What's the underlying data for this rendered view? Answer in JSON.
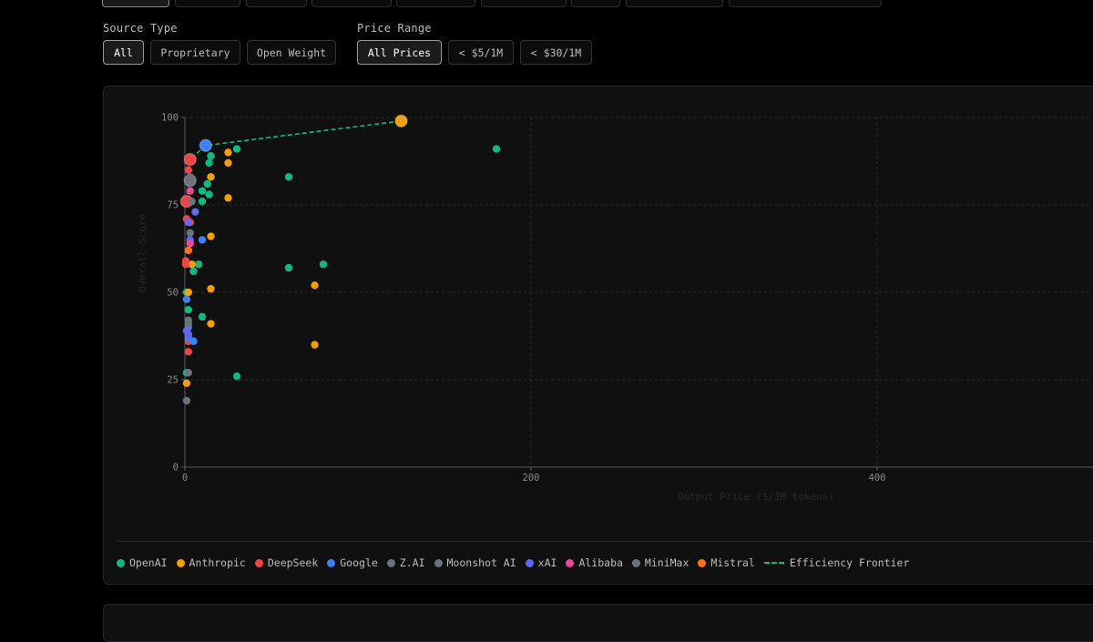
{
  "filters": {
    "source_type": {
      "label": "Source Type",
      "options": [
        "All",
        "Proprietary",
        "Open Weight"
      ],
      "selected": "All"
    },
    "price_range": {
      "label": "Price Range",
      "options": [
        "All Prices",
        "< $5/1M",
        "< $30/1M"
      ],
      "selected": "All Prices"
    }
  },
  "colors": {
    "OpenAI": "#10b981",
    "Anthropic": "#f59e0b",
    "DeepSeek": "#ef4444",
    "Google": "#3b82f6",
    "Z.AI": "#6b7280",
    "Moonshot AI": "#6b7280",
    "xAI": "#6366f1",
    "Alibaba": "#ec4899",
    "MiniMax": "#6b7280",
    "Mistral": "#f97316",
    "frontier": "#10b981"
  },
  "chart_data": {
    "type": "scatter",
    "xlabel": "Output Price ($/1M tokens)",
    "ylabel": "Overall Score",
    "xlim": [
      0,
      500
    ],
    "ylim": [
      0,
      100
    ],
    "x_ticks": [
      0,
      200,
      400
    ],
    "y_ticks": [
      0,
      25,
      50,
      75,
      100
    ],
    "grid": true,
    "legend_position": "bottom",
    "series": [
      {
        "name": "OpenAI",
        "points": [
          [
            180,
            91
          ],
          [
            30,
            91
          ],
          [
            15,
            89
          ],
          [
            14,
            87
          ],
          [
            13,
            81
          ],
          [
            14,
            78
          ],
          [
            10,
            79
          ],
          [
            10,
            76
          ],
          [
            60,
            83
          ],
          [
            60,
            57
          ],
          [
            80,
            58
          ],
          [
            8,
            58
          ],
          [
            5,
            56
          ],
          [
            1,
            50
          ],
          [
            2,
            45
          ],
          [
            10,
            43
          ],
          [
            30,
            26
          ],
          [
            1,
            27
          ]
        ]
      },
      {
        "name": "Anthropic",
        "points": [
          [
            125,
            99
          ],
          [
            25,
            90
          ],
          [
            25,
            87
          ],
          [
            15,
            83
          ],
          [
            25,
            77
          ],
          [
            15,
            66
          ],
          [
            75,
            52
          ],
          [
            15,
            51
          ],
          [
            4,
            58
          ],
          [
            15,
            41
          ],
          [
            75,
            35
          ],
          [
            2,
            50
          ],
          [
            1,
            24
          ]
        ]
      },
      {
        "name": "DeepSeek",
        "points": [
          [
            3,
            88
          ],
          [
            2,
            85
          ],
          [
            1,
            76
          ],
          [
            1,
            71
          ],
          [
            3,
            70
          ],
          [
            3,
            64
          ],
          [
            2,
            62
          ],
          [
            0.5,
            59
          ],
          [
            0.5,
            58
          ],
          [
            2,
            36
          ],
          [
            2,
            33
          ]
        ]
      },
      {
        "name": "Google",
        "points": [
          [
            12,
            92
          ],
          [
            10,
            65
          ],
          [
            1,
            48
          ],
          [
            5,
            36
          ],
          [
            2,
            40
          ],
          [
            2,
            37
          ]
        ]
      },
      {
        "name": "Z.AI",
        "points": [
          [
            3,
            82
          ],
          [
            3,
            67
          ],
          [
            2,
            27
          ]
        ]
      },
      {
        "name": "Moonshot AI",
        "points": [
          [
            3,
            83
          ],
          [
            4,
            76
          ],
          [
            2,
            42
          ]
        ]
      },
      {
        "name": "xAI",
        "points": [
          [
            6,
            73
          ],
          [
            2,
            70
          ],
          [
            3,
            65
          ],
          [
            1,
            39
          ],
          [
            2,
            38
          ]
        ]
      },
      {
        "name": "Alibaba",
        "points": [
          [
            3,
            79
          ],
          [
            3,
            64
          ]
        ]
      },
      {
        "name": "MiniMax",
        "points": [
          [
            1,
            19
          ],
          [
            2,
            41
          ]
        ]
      },
      {
        "name": "Mistral",
        "points": [
          [
            2,
            62
          ]
        ]
      }
    ],
    "frontier": {
      "name": "Efficiency Frontier",
      "points": [
        [
          1,
          76
        ],
        [
          3,
          88
        ],
        [
          12,
          92
        ],
        [
          125,
          99
        ]
      ]
    },
    "highlighted": [
      [
        1,
        76
      ],
      [
        3,
        88
      ],
      [
        12,
        92
      ],
      [
        125,
        99
      ],
      [
        3,
        82
      ]
    ]
  }
}
